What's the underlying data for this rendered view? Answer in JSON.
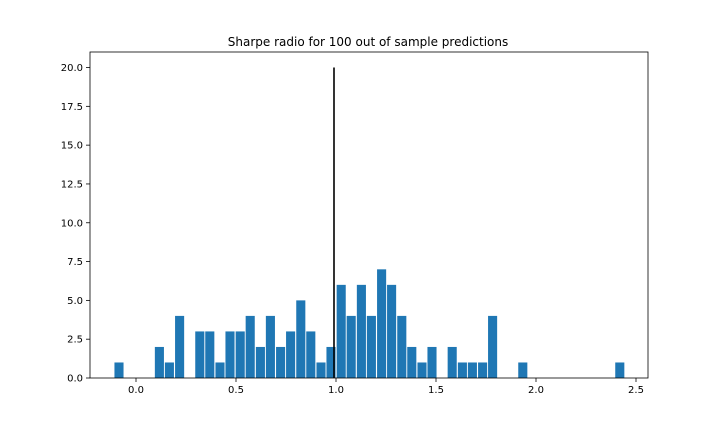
{
  "chart_data": {
    "type": "bar",
    "title": "Sharpe radio for 100 out of sample predictions",
    "xlabel": "",
    "ylabel": "",
    "xlim": [
      -0.23,
      2.56
    ],
    "ylim": [
      0,
      21
    ],
    "xticks": [
      0.0,
      0.5,
      1.0,
      1.5,
      2.0,
      2.5
    ],
    "xtick_labels": [
      "0.0",
      "0.5",
      "1.0",
      "1.5",
      "2.0",
      "2.5"
    ],
    "yticks": [
      0.0,
      2.5,
      5.0,
      7.5,
      10.0,
      12.5,
      15.0,
      17.5,
      20.0
    ],
    "ytick_labels": [
      "0.0",
      "2.5",
      "5.0",
      "7.5",
      "10.0",
      "12.5",
      "15.0",
      "17.5",
      "20.0"
    ],
    "bin_width": 0.0505,
    "bin_centers": [
      -0.085,
      0.117,
      0.167,
      0.218,
      0.319,
      0.369,
      0.42,
      0.47,
      0.521,
      0.571,
      0.622,
      0.672,
      0.723,
      0.773,
      0.824,
      0.874,
      0.925,
      0.975,
      1.026,
      1.076,
      1.127,
      1.177,
      1.228,
      1.278,
      1.329,
      1.379,
      1.43,
      1.48,
      1.581,
      1.632,
      1.682,
      1.733,
      1.783,
      1.934,
      2.419
    ],
    "counts": [
      1,
      2,
      1,
      4,
      3,
      3,
      1,
      3,
      3,
      4,
      2,
      4,
      2,
      3,
      5,
      3,
      1,
      2,
      6,
      4,
      6,
      4,
      7,
      6,
      4,
      2,
      1,
      2,
      2,
      1,
      1,
      1,
      4,
      1,
      1
    ],
    "reference_line": {
      "x": 0.99,
      "y_from": 0,
      "y_to": 20
    },
    "grid": false,
    "colors": {
      "bar": "#1f77b4",
      "reference_line": "#000000"
    }
  }
}
